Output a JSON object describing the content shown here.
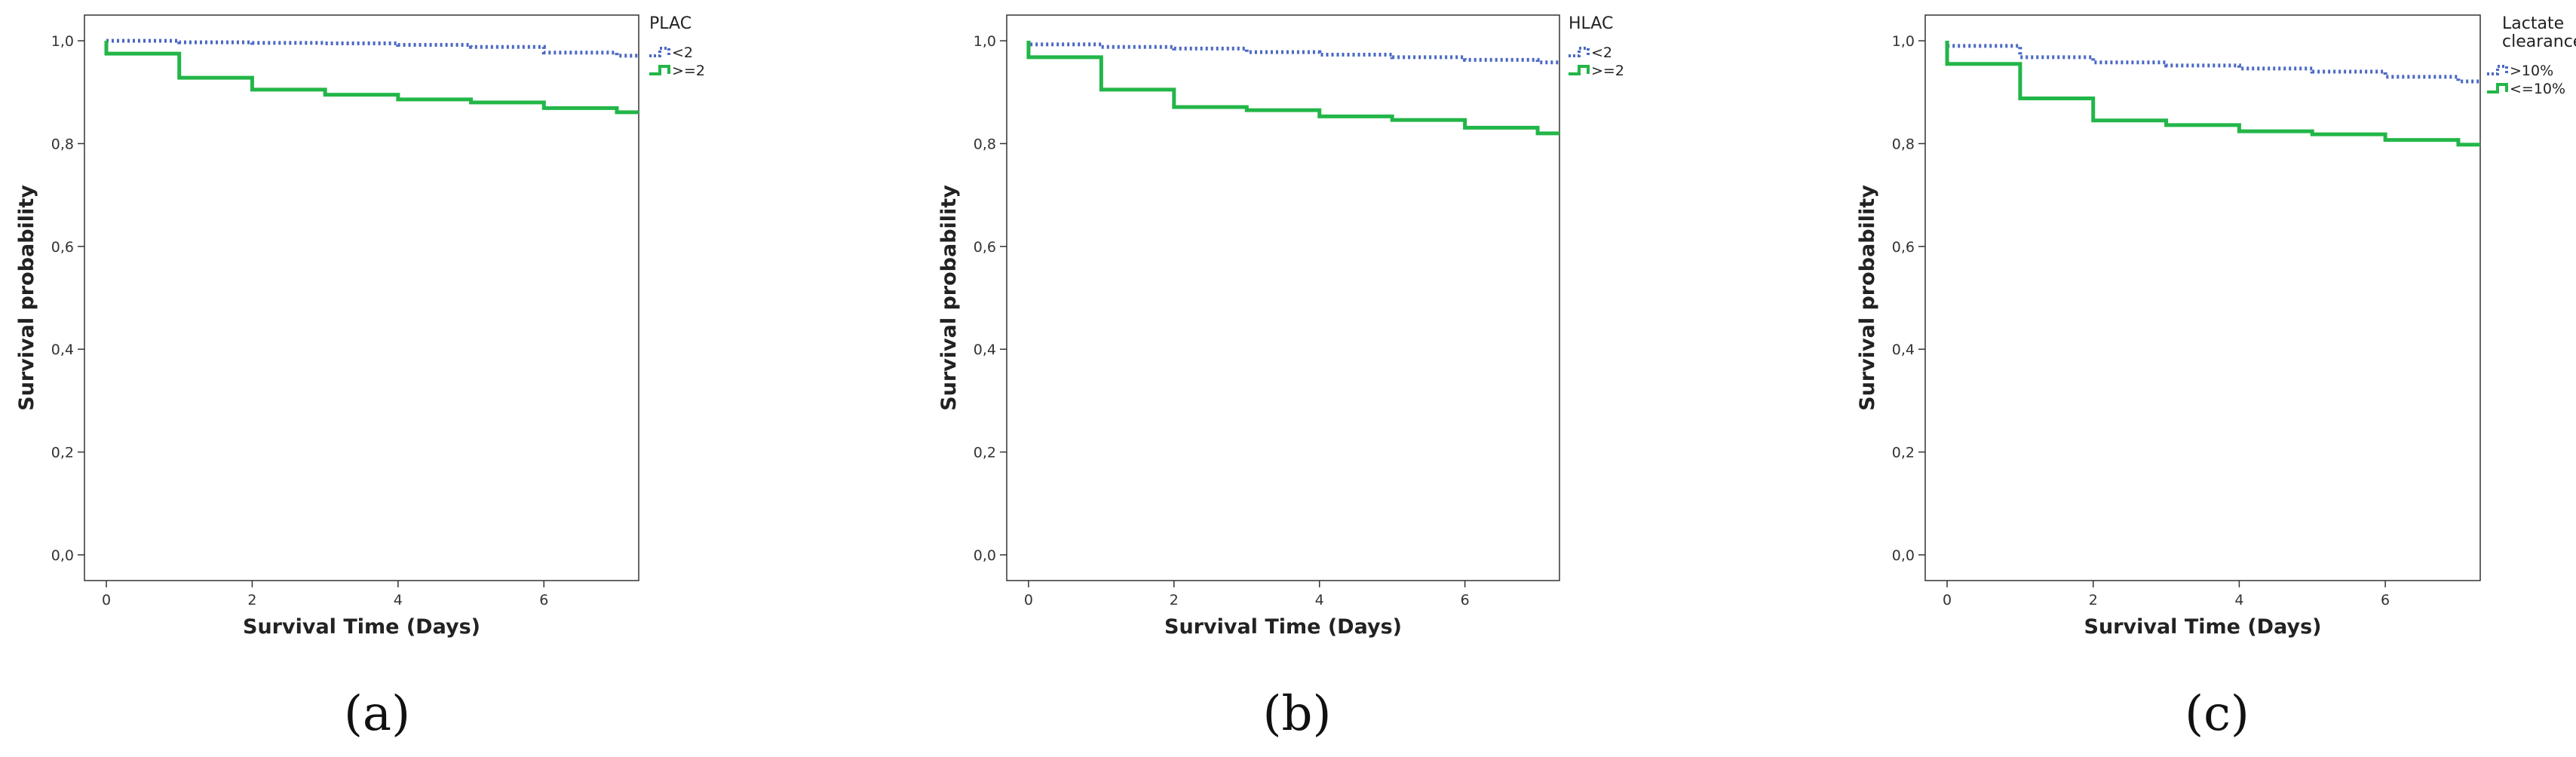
{
  "chart_data": [
    {
      "type": "line",
      "subtype": "step",
      "panel_label": "(a)",
      "xlabel": "Survival Time (Days)",
      "ylabel": "Survival probability",
      "xlim": [
        -0.3,
        7.3
      ],
      "ylim": [
        -0.05,
        1.05
      ],
      "x_ticks": [
        0,
        2,
        4,
        6
      ],
      "x_tick_labels": [
        "0",
        "2",
        "4",
        "6"
      ],
      "y_ticks": [
        0,
        0.2,
        0.4,
        0.6,
        0.8,
        1.0
      ],
      "y_tick_labels": [
        "0,0",
        "0,2",
        "0,4",
        "0,6",
        "0,8",
        "1,0"
      ],
      "legend": {
        "title": "PLAC",
        "location": "top-right"
      },
      "series": [
        {
          "name": "<2",
          "color": "#4a68c4",
          "style": "dotted",
          "x": [
            0,
            1,
            2,
            3,
            4,
            5,
            6,
            7,
            7.3
          ],
          "y": [
            1.0,
            0.997,
            0.996,
            0.995,
            0.992,
            0.988,
            0.977,
            0.971,
            0.971
          ]
        },
        {
          "name": ">=2",
          "color": "#22b648",
          "style": "solid",
          "x": [
            0,
            1,
            2,
            3,
            4,
            5,
            6,
            7,
            7.3
          ],
          "y": [
            0.975,
            0.928,
            0.905,
            0.895,
            0.886,
            0.88,
            0.869,
            0.861,
            0.861
          ]
        }
      ]
    },
    {
      "type": "line",
      "subtype": "step",
      "panel_label": "(b)",
      "xlabel": "Survival Time (Days)",
      "ylabel": "Survival probability",
      "xlim": [
        -0.3,
        7.3
      ],
      "ylim": [
        -0.05,
        1.05
      ],
      "x_ticks": [
        0,
        2,
        4,
        6
      ],
      "x_tick_labels": [
        "0",
        "2",
        "4",
        "6"
      ],
      "y_ticks": [
        0,
        0.2,
        0.4,
        0.6,
        0.8,
        1.0
      ],
      "y_tick_labels": [
        "0,0",
        "0,2",
        "0,4",
        "0,6",
        "0,8",
        "1,0"
      ],
      "legend": {
        "title": "HLAC",
        "location": "top-right"
      },
      "series": [
        {
          "name": "<2",
          "color": "#4a68c4",
          "style": "dotted",
          "x": [
            0,
            1,
            2,
            3,
            4,
            5,
            6,
            7,
            7.3
          ],
          "y": [
            0.993,
            0.988,
            0.985,
            0.978,
            0.973,
            0.968,
            0.963,
            0.958,
            0.958
          ]
        },
        {
          "name": ">=2",
          "color": "#22b648",
          "style": "solid",
          "x": [
            0,
            1,
            2,
            3,
            4,
            5,
            6,
            7,
            7.3
          ],
          "y": [
            0.968,
            0.905,
            0.871,
            0.865,
            0.853,
            0.846,
            0.831,
            0.82,
            0.82
          ]
        }
      ]
    },
    {
      "type": "line",
      "subtype": "step",
      "panel_label": "(c)",
      "xlabel": "Survival Time (Days)",
      "ylabel": "Survival probability",
      "xlim": [
        -0.3,
        7.3
      ],
      "ylim": [
        -0.05,
        1.05
      ],
      "x_ticks": [
        0,
        2,
        4,
        6
      ],
      "x_tick_labels": [
        "0",
        "2",
        "4",
        "6"
      ],
      "y_ticks": [
        0,
        0.2,
        0.4,
        0.6,
        0.8,
        1.0
      ],
      "y_tick_labels": [
        "0,0",
        "0,2",
        "0,4",
        "0,6",
        "0,8",
        "1,0"
      ],
      "legend": {
        "title": "Lactate clearance",
        "title_lines": [
          "Lactate",
          "clearance"
        ],
        "location": "top-right"
      },
      "series": [
        {
          "name": ">10%",
          "color": "#4a68c4",
          "style": "dotted",
          "x": [
            0,
            1,
            2,
            3,
            4,
            5,
            6,
            7,
            7.3
          ],
          "y": [
            0.99,
            0.968,
            0.958,
            0.952,
            0.946,
            0.94,
            0.93,
            0.921,
            0.921
          ]
        },
        {
          "name": "<=10%",
          "color": "#22b648",
          "style": "solid",
          "x": [
            0,
            1,
            2,
            3,
            4,
            5,
            6,
            7,
            7.3
          ],
          "y": [
            0.955,
            0.888,
            0.845,
            0.836,
            0.824,
            0.818,
            0.807,
            0.798,
            0.798
          ]
        }
      ]
    }
  ]
}
